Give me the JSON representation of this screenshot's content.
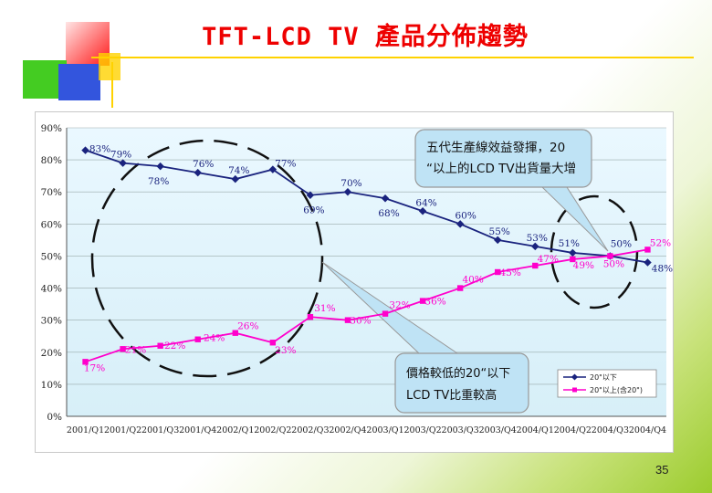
{
  "slide": {
    "title": "TFT-LCD TV 產品分佈趨勢",
    "page_number": "35"
  },
  "colors": {
    "title": "#ee0000",
    "series1": "#1a237e",
    "series2": "#ff00cc",
    "plot_bg": "#dcf2fb",
    "callout_bg": "#bfe3f5",
    "deco_red": "#ff1a1a",
    "deco_green": "#44cc22",
    "deco_blue": "#3355dd",
    "deco_yellow": "#ffd200"
  },
  "chart_data": {
    "type": "line",
    "categories": [
      "2001/Q1",
      "2001/Q2",
      "2001/Q3",
      "2001/Q4",
      "2002/Q1",
      "2002/Q2",
      "2002/Q3",
      "2002/Q4",
      "2003/Q1",
      "2003/Q2",
      "2003/Q3",
      "2003/Q4",
      "2004/Q1",
      "2004/Q2",
      "2004/Q3",
      "2004/Q4"
    ],
    "ylim": [
      0,
      90
    ],
    "yticks": [
      "0%",
      "10%",
      "20%",
      "30%",
      "40%",
      "50%",
      "60%",
      "70%",
      "80%",
      "90%"
    ],
    "grid": true,
    "legend_position": "bottom-right",
    "series": [
      {
        "name": "20\"以下",
        "marker": "diamond",
        "values": [
          83,
          79,
          78,
          76,
          74,
          77,
          69,
          70,
          68,
          64,
          60,
          55,
          53,
          51,
          50,
          48
        ],
        "labels": [
          "83%",
          "79%",
          "78%",
          "76%",
          "74%",
          "77%",
          "69%",
          "70%",
          "68%",
          "64%",
          "60%",
          "55%",
          "53%",
          "51%",
          "50%",
          "48%"
        ]
      },
      {
        "name": "20\"以上(含20\")",
        "marker": "square",
        "values": [
          17,
          21,
          22,
          24,
          26,
          23,
          31,
          30,
          32,
          36,
          40,
          45,
          47,
          49,
          50,
          52
        ],
        "labels": [
          "17%",
          "21%",
          "22%",
          "24%",
          "26%",
          "23%",
          "31%",
          "30%",
          "32%",
          "36%",
          "40%",
          "45%",
          "47%",
          "49%",
          "50%",
          "52%"
        ]
      }
    ],
    "annotations": [
      {
        "lines": [
          "五代生產線效益發揮，20",
          "“以上的LCD TV出貨量大增"
        ]
      },
      {
        "lines": [
          "價格較低的20“以下",
          "LCD TV比重較高"
        ]
      }
    ]
  }
}
